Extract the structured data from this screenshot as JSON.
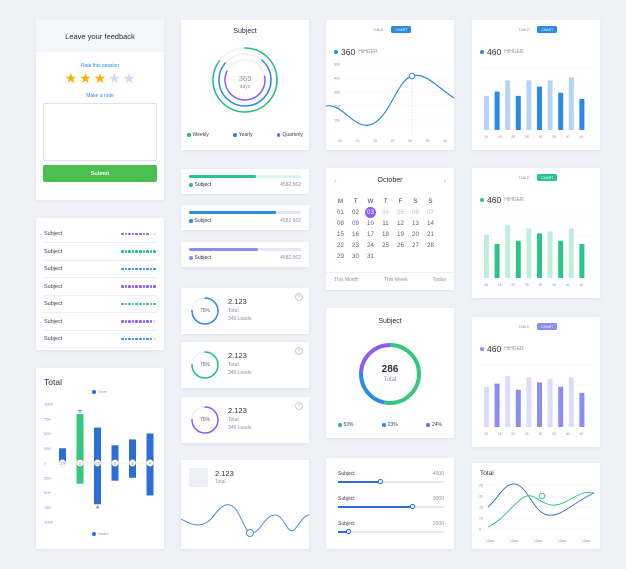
{
  "feedback": {
    "title": "Leave your feedback",
    "rate_label": "Rate this session",
    "stars_total": 5,
    "stars_filled": 3,
    "note_label": "Make a note",
    "submit_label": "Submit"
  },
  "subject_list": {
    "rows": [
      {
        "label": "Subject",
        "color": "#8b5cf6",
        "filled": 8,
        "total": 10
      },
      {
        "label": "Subject",
        "color": "#22c07a",
        "filled": 10,
        "total": 10
      },
      {
        "label": "Subject",
        "color": "#2b8ae6",
        "filled": 10,
        "total": 10
      },
      {
        "label": "Subject",
        "color": "#8b5cf6",
        "filled": 10,
        "total": 10
      },
      {
        "label": "Subject",
        "color": "#22c07a",
        "filled": 10,
        "total": 10
      },
      {
        "label": "Subject",
        "color": "#8b5cf6",
        "filled": 9,
        "total": 10
      },
      {
        "label": "Subject",
        "color": "#2b8ae6",
        "filled": 9,
        "total": 10
      }
    ]
  },
  "total_waterfall": {
    "title": "Total",
    "legend_over": "Over",
    "legend_under": "Under",
    "y_ticks": [
      "1000",
      "750",
      "500",
      "250",
      "0",
      "250",
      "500",
      "750",
      "1000"
    ],
    "bars": [
      {
        "top": 250,
        "bottom": 0,
        "color": "#2b6fd6",
        "label": "1.5"
      },
      {
        "top": 830,
        "bottom": -350,
        "color": "#34c87e",
        "label": "2"
      },
      {
        "top": 600,
        "bottom": -700,
        "color": "#2b6fd6",
        "label": "2.5"
      },
      {
        "top": 300,
        "bottom": -300,
        "color": "#2b6fd6",
        "label": "3"
      },
      {
        "top": 400,
        "bottom": -250,
        "color": "#2b6fd6",
        "label": "3"
      },
      {
        "top": 500,
        "bottom": -550,
        "color": "#2b6fd6",
        "label": "4"
      }
    ]
  },
  "subject_donut": {
    "title": "Subject",
    "value": "365",
    "unit": "days",
    "legend": [
      {
        "label": "Weekly",
        "color": "#22c07a"
      },
      {
        "label": "Yearly",
        "color": "#2b8ae6"
      },
      {
        "label": "Quarterly",
        "color": "#8b5cf6"
      }
    ],
    "rings": [
      {
        "fraction": 0.85,
        "color": "#22c07a"
      },
      {
        "fraction": 0.75,
        "color": "#2b8ae6"
      },
      {
        "fraction": 0.6,
        "color": "#8b5cf6"
      }
    ]
  },
  "progress_items": [
    {
      "label": "Subject",
      "value": "4582.562",
      "fraction": 0.6,
      "color": "#2bc48a",
      "track": "#d9f4e8"
    },
    {
      "label": "Subject",
      "value": "4582.562",
      "fraction": 0.78,
      "color": "#2b8ae6",
      "track": "#dce9fa"
    },
    {
      "label": "Subject",
      "value": "4582.562",
      "fraction": 0.62,
      "color": "#8b8df2",
      "track": "#e7e7fb"
    }
  ],
  "lead_cards": [
    {
      "percent": "75%",
      "value": "2.123",
      "label": "Total",
      "leads": "345 Leads",
      "color": "#2b8ae6",
      "fraction": 0.75
    },
    {
      "percent": "75%",
      "value": "2.123",
      "label": "Total",
      "leads": "345 Leads",
      "color": "#22c07a",
      "fraction": 0.75
    },
    {
      "percent": "75%",
      "value": "2.123",
      "label": "Total",
      "leads": "345 Leads",
      "color": "#8b5cf6",
      "fraction": 0.75
    }
  ],
  "wave_card": {
    "value": "2.123",
    "label": "Total"
  },
  "line_card": {
    "toggle_table": "TABLE",
    "toggle_chart": "CHART",
    "value": "360",
    "suffix": "HIHGER",
    "y_ticks": [
      "500",
      "400",
      "300",
      "200",
      "100"
    ],
    "x_ticks": [
      "10",
      "15",
      "20",
      "25",
      "30",
      "35",
      "40"
    ]
  },
  "calendar": {
    "month": "October",
    "weekdays": [
      "M",
      "T",
      "W",
      "T",
      "F",
      "S",
      "S"
    ],
    "weeks": [
      [
        "01",
        "02",
        "03",
        "04",
        "05",
        "06",
        "07"
      ],
      [
        "08",
        "09",
        "10",
        "11",
        "12",
        "13",
        "14"
      ],
      [
        "15",
        "16",
        "17",
        "18",
        "19",
        "20",
        "21"
      ],
      [
        "22",
        "23",
        "24",
        "25",
        "26",
        "27",
        "28"
      ],
      [
        "29",
        "30",
        "31",
        "",
        "",
        "",
        ""
      ]
    ],
    "selected": "03",
    "footer": [
      "This Month",
      "This Week",
      "Today"
    ]
  },
  "big_donut": {
    "title": "Subject",
    "value": "286",
    "label": "Total",
    "legend": [
      {
        "label": "53%",
        "color": "#22c07a"
      },
      {
        "label": "23%",
        "color": "#2b8ae6"
      },
      {
        "label": "24%",
        "color": "#8b5cf6"
      }
    ]
  },
  "sliders": {
    "items": [
      {
        "label": "Subject",
        "value": "4000",
        "fraction": 0.4
      },
      {
        "label": "Subject",
        "value": "9000",
        "fraction": 0.7
      },
      {
        "label": "Subject",
        "value": "2000",
        "fraction": 0.1
      }
    ]
  },
  "bar_cards": [
    {
      "toggle_table": "TABLE",
      "toggle_chart": "CHART",
      "value": "460",
      "suffix": "HIHGER",
      "accent": "#2b8ae6",
      "light": "#b6d5f6",
      "values": [
        0.55,
        0.62,
        0.8,
        0.55,
        0.8,
        0.7,
        0.8,
        0.6,
        0.85,
        0.5
      ],
      "x_ticks": [
        "10",
        "15",
        "20",
        "25",
        "30",
        "35",
        "40",
        "45"
      ]
    },
    {
      "toggle_table": "TABLE",
      "toggle_chart": "CHART",
      "value": "460",
      "suffix": "HIHGER",
      "accent": "#2bc48a",
      "light": "#bfeedb",
      "values": [
        0.7,
        0.55,
        0.85,
        0.6,
        0.8,
        0.72,
        0.75,
        0.6,
        0.8,
        0.55
      ],
      "x_ticks": [
        "10",
        "15",
        "20",
        "25",
        "30",
        "35",
        "40",
        "45"
      ]
    },
    {
      "toggle_table": "TABLE",
      "toggle_chart": "CHART",
      "value": "460",
      "suffix": "HIHGER",
      "accent": "#8b8df2",
      "light": "#dcdcfb",
      "values": [
        0.65,
        0.7,
        0.82,
        0.6,
        0.8,
        0.72,
        0.78,
        0.65,
        0.8,
        0.55
      ],
      "x_ticks": [
        "10",
        "15",
        "20",
        "25",
        "30",
        "35",
        "40",
        "45"
      ]
    }
  ],
  "total_lines": {
    "title": "Total",
    "y_ticks": [
      "25",
      "20",
      "15",
      "10",
      "5"
    ],
    "x_ticks": [
      "11am",
      "11am",
      "11am",
      "11am",
      "11am"
    ]
  }
}
